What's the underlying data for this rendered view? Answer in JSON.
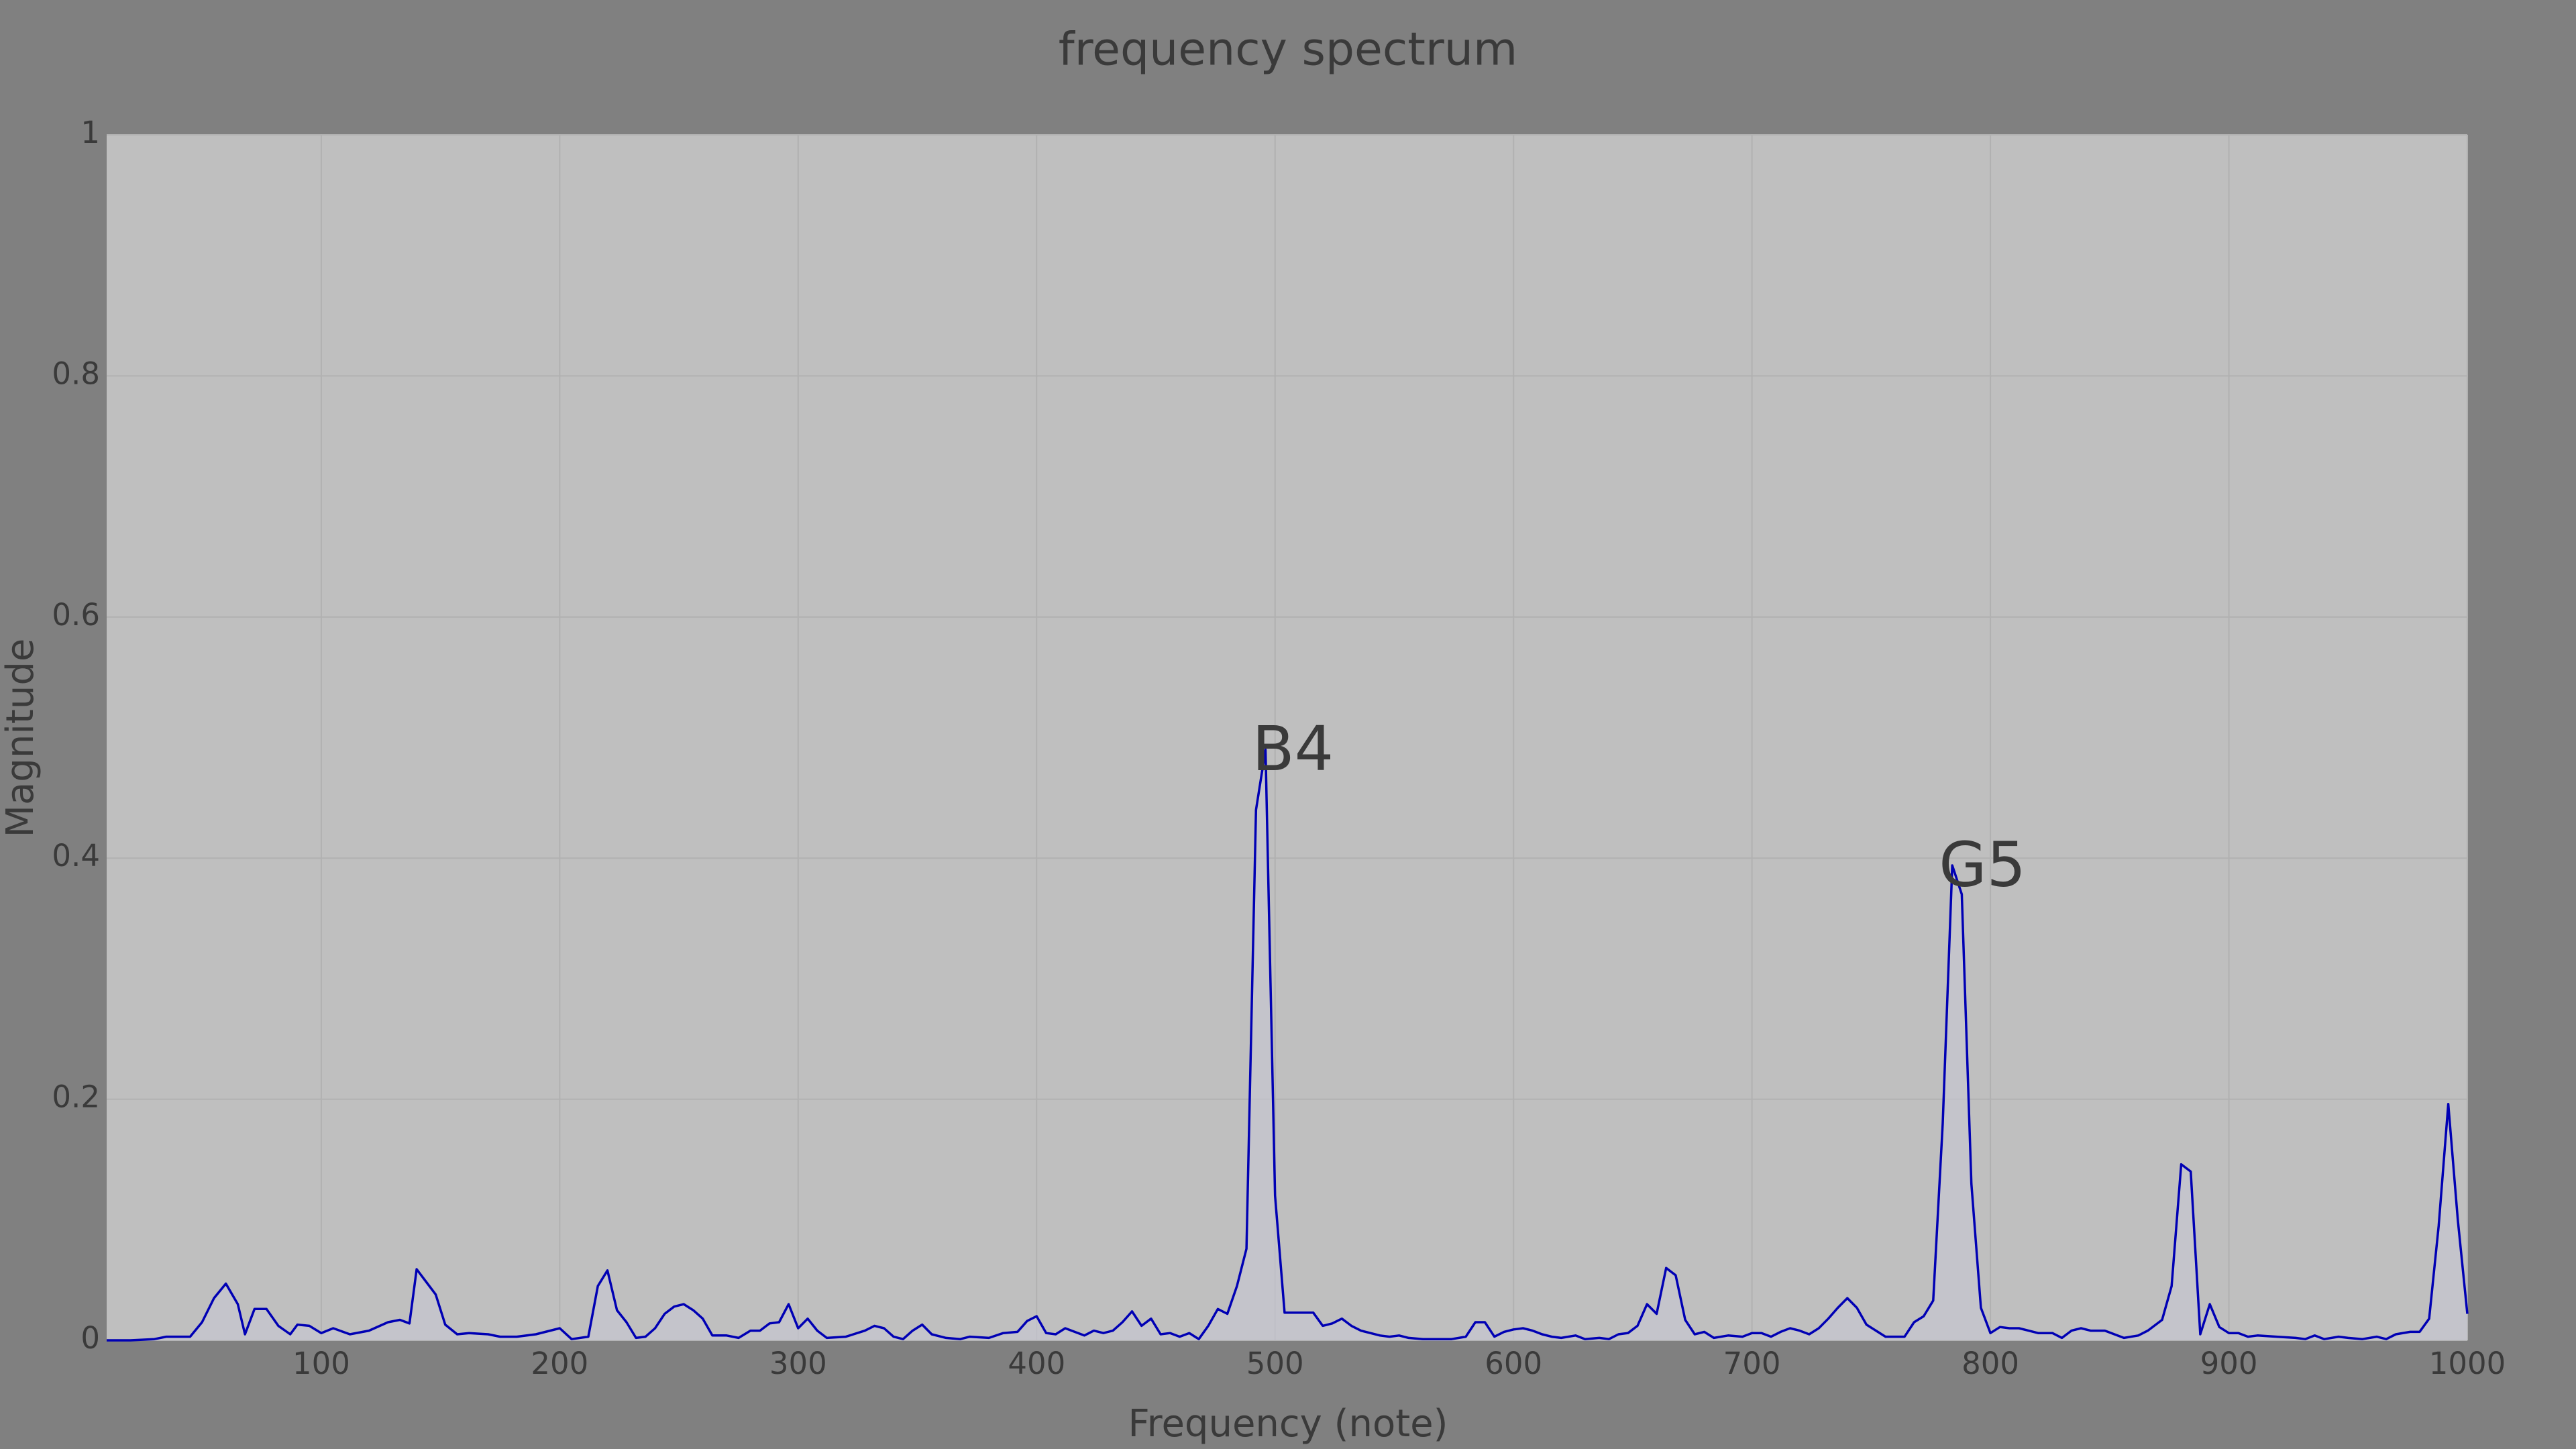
{
  "chart_data": {
    "type": "line",
    "title": "frequency spectrum",
    "x_label": "Frequency (note)",
    "y_label": "Magnitude",
    "color": "#0000b4",
    "grid": true,
    "xlim": [
      10,
      1000
    ],
    "xticks": [
      100,
      200,
      300,
      400,
      500,
      600,
      700,
      800,
      900,
      1000
    ],
    "ylim": [
      0,
      1
    ],
    "yticks": [
      0,
      0.2,
      0.4,
      0.6,
      0.8,
      1
    ],
    "x": [
      10,
      20,
      30,
      35,
      45,
      50,
      55,
      60,
      65,
      68,
      72,
      77,
      82,
      87,
      90,
      95,
      100,
      105,
      112,
      120,
      128,
      133,
      137,
      140,
      148,
      152,
      157,
      162,
      170,
      175,
      182,
      190,
      200,
      205,
      212,
      216,
      220,
      224,
      228,
      232,
      236,
      240,
      244,
      248,
      252,
      256,
      260,
      264,
      270,
      275,
      280,
      284,
      288,
      292,
      296,
      300,
      304,
      308,
      312,
      320,
      328,
      332,
      336,
      340,
      344,
      348,
      352,
      356,
      362,
      368,
      372,
      380,
      386,
      392,
      396,
      400,
      404,
      408,
      412,
      416,
      420,
      424,
      428,
      432,
      436,
      440,
      444,
      448,
      452,
      456,
      460,
      464,
      468,
      472,
      476,
      480,
      484,
      488,
      492,
      496,
      500,
      504,
      508,
      512,
      516,
      520,
      524,
      528,
      532,
      536,
      540,
      544,
      548,
      552,
      556,
      562,
      568,
      574,
      580,
      584,
      588,
      592,
      596,
      600,
      604,
      608,
      612,
      616,
      620,
      626,
      630,
      636,
      640,
      644,
      648,
      652,
      656,
      660,
      664,
      668,
      672,
      676,
      680,
      684,
      690,
      696,
      700,
      704,
      708,
      712,
      716,
      720,
      724,
      728,
      732,
      736,
      740,
      744,
      748,
      752,
      756,
      760,
      764,
      768,
      772,
      776,
      780,
      784,
      788,
      792,
      796,
      800,
      804,
      808,
      812,
      816,
      820,
      826,
      830,
      834,
      838,
      842,
      848,
      852,
      856,
      862,
      866,
      872,
      876,
      880,
      884,
      888,
      892,
      896,
      900,
      904,
      908,
      912,
      920,
      928,
      932,
      936,
      940,
      946,
      950,
      956,
      962,
      966,
      970,
      976,
      980,
      984,
      988,
      992,
      996,
      1000
    ],
    "values": [
      0,
      0,
      0.001,
      0.003,
      0.003,
      0.015,
      0.035,
      0.047,
      0.03,
      0.005,
      0.026,
      0.026,
      0.012,
      0.005,
      0.013,
      0.012,
      0.006,
      0.01,
      0.005,
      0.008,
      0.015,
      0.017,
      0.014,
      0.059,
      0.038,
      0.013,
      0.005,
      0.006,
      0.005,
      0.003,
      0.003,
      0.005,
      0.01,
      0.001,
      0.003,
      0.045,
      0.058,
      0.025,
      0.015,
      0.002,
      0.003,
      0.01,
      0.022,
      0.028,
      0.03,
      0.025,
      0.018,
      0.004,
      0.004,
      0.002,
      0.008,
      0.008,
      0.014,
      0.015,
      0.03,
      0.01,
      0.018,
      0.008,
      0.002,
      0.003,
      0.008,
      0.012,
      0.01,
      0.003,
      0.001,
      0.008,
      0.013,
      0.005,
      0.002,
      0.001,
      0.003,
      0.002,
      0.006,
      0.007,
      0.016,
      0.02,
      0.006,
      0.005,
      0.01,
      0.007,
      0.004,
      0.008,
      0.006,
      0.008,
      0.015,
      0.024,
      0.012,
      0.018,
      0.005,
      0.006,
      0.003,
      0.006,
      0.001,
      0.012,
      0.026,
      0.022,
      0.045,
      0.076,
      0.44,
      0.49,
      0.12,
      0.023,
      0.023,
      0.023,
      0.023,
      0.012,
      0.014,
      0.018,
      0.012,
      0.008,
      0.006,
      0.004,
      0.003,
      0.004,
      0.002,
      0.001,
      0.001,
      0.001,
      0.003,
      0.015,
      0.015,
      0.003,
      0.007,
      0.009,
      0.01,
      0.008,
      0.005,
      0.003,
      0.002,
      0.004,
      0.001,
      0.002,
      0.001,
      0.005,
      0.006,
      0.012,
      0.03,
      0.022,
      0.06,
      0.054,
      0.017,
      0.005,
      0.007,
      0.002,
      0.004,
      0.003,
      0.006,
      0.006,
      0.003,
      0.007,
      0.01,
      0.008,
      0.005,
      0.01,
      0.018,
      0.027,
      0.035,
      0.027,
      0.013,
      0.008,
      0.003,
      0.003,
      0.003,
      0.015,
      0.02,
      0.033,
      0.18,
      0.394,
      0.37,
      0.13,
      0.027,
      0.006,
      0.011,
      0.01,
      0.01,
      0.008,
      0.006,
      0.006,
      0.002,
      0.008,
      0.01,
      0.008,
      0.008,
      0.005,
      0.002,
      0.004,
      0.008,
      0.017,
      0.045,
      0.146,
      0.14,
      0.005,
      0.03,
      0.011,
      0.006,
      0.006,
      0.003,
      0.004,
      0.003,
      0.002,
      0.001,
      0.004,
      0.001,
      0.003,
      0.002,
      0.001,
      0.003,
      0.001,
      0.005,
      0.007,
      0.007,
      0.018,
      0.095,
      0.196,
      0.1,
      0.022
    ],
    "annotations": [
      {
        "text": "B4",
        "x": 496,
        "y": 0.49
      },
      {
        "text": "G5",
        "x": 784,
        "y": 0.394
      }
    ]
  }
}
